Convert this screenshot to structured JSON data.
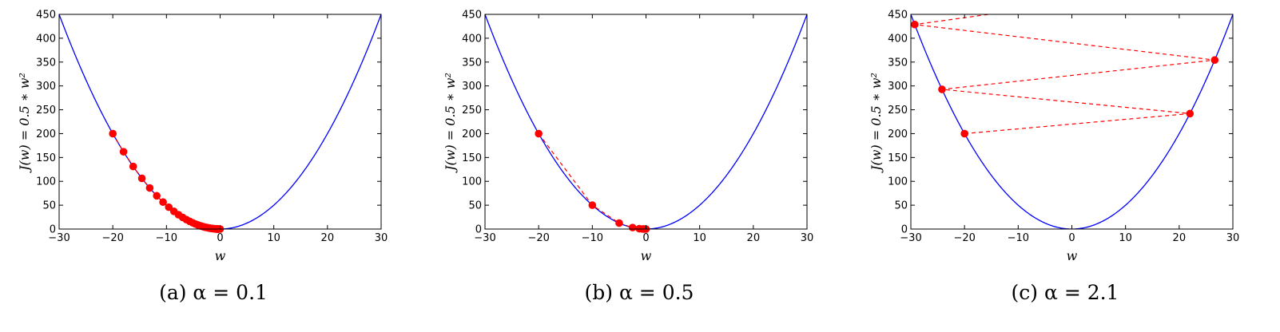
{
  "chart_data": [
    {
      "type": "line",
      "caption": "(a) α = 0.1",
      "xlabel": "w",
      "ylabel": "J(w) = 0.5 ∗ w²",
      "xlim": [
        -30,
        30
      ],
      "ylim": [
        0,
        450
      ],
      "xticks": [
        "−30",
        "−20",
        "−10",
        "0",
        "10",
        "20",
        "30"
      ],
      "yticks": [
        "0",
        "50",
        "100",
        "150",
        "200",
        "250",
        "300",
        "350",
        "400",
        "450"
      ],
      "curve": {
        "function": "0.5*w^2",
        "color": "#0000ff"
      },
      "steps": {
        "color": "#ff0000",
        "x": [
          -20,
          -18,
          -16.2,
          -14.58,
          -13.12,
          -11.81,
          -10.63,
          -9.57,
          -8.61,
          -7.75,
          -6.97,
          -6.28,
          -5.65,
          -5.08,
          -4.58,
          -4.12,
          -3.71,
          -3.34,
          -3.0,
          -2.7,
          -2.43,
          -2.19,
          -1.97,
          -1.77,
          -1.6,
          -1.44,
          -1.29,
          -1.16,
          -1.05,
          -0.94,
          -0.85,
          -0.76,
          -0.69,
          -0.62,
          -0.56,
          -0.5,
          -0.45,
          -0.41,
          -0.36,
          -0.33,
          0
        ],
        "y": [
          200,
          162,
          131.2,
          106.3,
          86.1,
          69.7,
          56.5,
          45.8,
          37.1,
          30.0,
          24.3,
          19.7,
          15.96,
          12.93,
          10.47,
          8.48,
          6.87,
          5.56,
          4.51,
          3.65,
          2.96,
          2.4,
          1.94,
          1.57,
          1.27,
          1.03,
          0.84,
          0.68,
          0.55,
          0.44,
          0.36,
          0.29,
          0.24,
          0.19,
          0.16,
          0.12,
          0.1,
          0.08,
          0.07,
          0.05,
          0
        ]
      }
    },
    {
      "type": "line",
      "caption": "(b) α = 0.5",
      "xlabel": "w",
      "ylabel": "J(w) = 0.5 ∗ w²",
      "xlim": [
        -30,
        30
      ],
      "ylim": [
        0,
        450
      ],
      "xticks": [
        "−30",
        "−20",
        "−10",
        "0",
        "10",
        "20",
        "30"
      ],
      "yticks": [
        "0",
        "50",
        "100",
        "150",
        "200",
        "250",
        "300",
        "350",
        "400",
        "450"
      ],
      "curve": {
        "function": "0.5*w^2",
        "color": "#0000ff"
      },
      "steps": {
        "color": "#ff0000",
        "x": [
          -20,
          -10,
          -5,
          -2.5,
          -1.25,
          -0.625,
          -0.3125,
          0
        ],
        "y": [
          200,
          50,
          12.5,
          3.125,
          0.78,
          0.2,
          0.05,
          0
        ]
      }
    },
    {
      "type": "line",
      "caption": "(c) α = 2.1",
      "xlabel": "w",
      "ylabel": "J(w) = 0.5 ∗ w²",
      "xlim": [
        -30,
        30
      ],
      "ylim": [
        0,
        450
      ],
      "xticks": [
        "−30",
        "−20",
        "−10",
        "0",
        "10",
        "20",
        "30"
      ],
      "yticks": [
        "0",
        "50",
        "100",
        "150",
        "200",
        "250",
        "300",
        "350",
        "400",
        "450"
      ],
      "curve": {
        "function": "0.5*w^2",
        "color": "#0000ff"
      },
      "steps": {
        "color": "#ff0000",
        "x": [
          -20,
          22,
          -24.2,
          26.62,
          -29.28,
          -15.5
        ],
        "y": [
          200,
          242,
          292.8,
          354.3,
          428.7,
          450
        ]
      }
    }
  ]
}
